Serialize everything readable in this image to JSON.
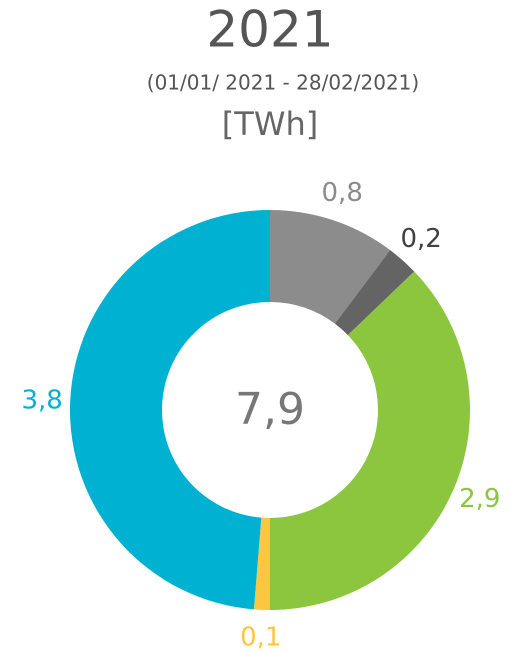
{
  "chart_data": {
    "type": "donut",
    "title": "2021",
    "subtitle": "(01/01/ 2021 - 28/02/2021)",
    "unit": "[TWh]",
    "center_text": "7,9",
    "values": [
      0.8,
      0.2,
      2.9,
      0.1,
      3.8
    ],
    "value_labels": [
      "0,8",
      "0,2",
      "2,9",
      "0,1",
      "3,8"
    ],
    "colors": [
      "#8c8c8c",
      "#646464",
      "#8cc63f",
      "#fdc641",
      "#00b1d2"
    ],
    "label_colors": [
      "#8c8c8c",
      "#404040",
      "#8cc63f",
      "#fdc641",
      "#00b1d2"
    ]
  }
}
